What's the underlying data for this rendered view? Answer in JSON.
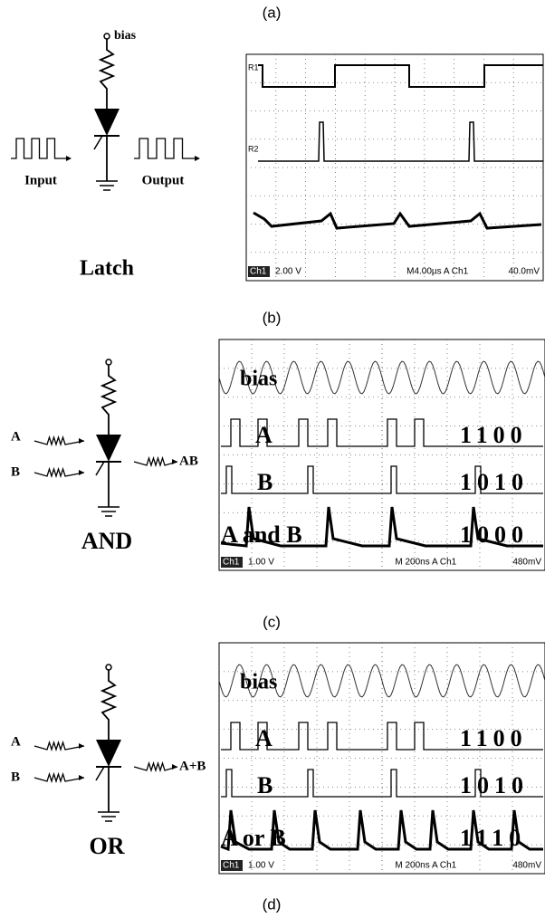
{
  "panel_labels": [
    "(a)",
    "(b)",
    "(c)",
    "(d)"
  ],
  "latch": {
    "bias": "bias",
    "input": "Input",
    "output": "Output",
    "name": "Latch",
    "scope": {
      "channels": [
        "R1",
        "R2"
      ],
      "ch": "Ch1",
      "volts": "2.00 V",
      "timebase": "M4.00µs A Ch1",
      "trigger": "40.0mV"
    }
  },
  "and": {
    "inputs": [
      "A",
      "B"
    ],
    "output": "AB",
    "name": "AND",
    "scope": {
      "traces": [
        "bias",
        "A",
        "B",
        "A and B"
      ],
      "codes": [
        "1100",
        "1010",
        "1000"
      ],
      "ch": "Ch1",
      "volts": "1.00 V",
      "timebase": "M 200ns A Ch1",
      "trigger": "480mV"
    }
  },
  "or": {
    "inputs": [
      "A",
      "B"
    ],
    "output": "A+B",
    "name": "OR",
    "scope": {
      "traces": [
        "bias",
        "A",
        "B",
        "A or B"
      ],
      "codes": [
        "1100",
        "1010",
        "1110"
      ],
      "ch": "Ch1",
      "volts": "1.00 V",
      "timebase": "M 200ns A Ch1",
      "trigger": "480mV"
    }
  }
}
